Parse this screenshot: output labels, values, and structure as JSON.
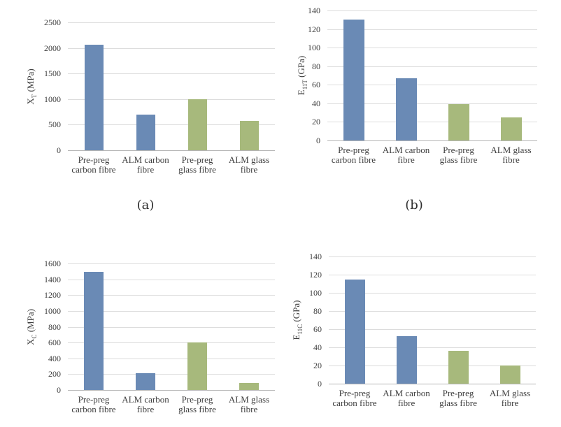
{
  "figure": {
    "background": "#ffffff",
    "subfigure_labels": [
      "(a)",
      "(b)"
    ]
  },
  "palette": {
    "carbon_fibre_bar_blue": "#6a8ab5",
    "glass_fibre_bar_green": "#a7b97c",
    "gridline": "#dcdcdc",
    "axis_line": "#b5b5b5",
    "text": "#3f3f3f"
  },
  "chart_data": [
    {
      "id": "a",
      "type": "bar",
      "caption": "(a)",
      "ylabel": "XT (MPa)",
      "ylabel_parts": {
        "base": "X",
        "sub": "T",
        "unit": " (MPa)"
      },
      "categories": [
        "Pre-preg carbon fibre",
        "ALM carbon fibre",
        "Pre-preg glass fibre",
        "ALM glass fibre"
      ],
      "category_lines": [
        [
          "Pre-preg",
          "carbon fibre"
        ],
        [
          "ALM carbon",
          "fibre"
        ],
        [
          "Pre-preg",
          "glass fibre"
        ],
        [
          "ALM glass",
          "fibre"
        ]
      ],
      "values": [
        2070,
        700,
        1000,
        580
      ],
      "bar_colors": [
        "#6a8ab5",
        "#6a8ab5",
        "#a7b97c",
        "#a7b97c"
      ],
      "ylim": [
        0,
        2500
      ],
      "ytick_step": 500,
      "yticks": [
        0,
        500,
        1000,
        1500,
        2000,
        2500
      ],
      "grid": true,
      "legend": "none"
    },
    {
      "id": "b",
      "type": "bar",
      "caption": "(b)",
      "ylabel": "E11T (GPa)",
      "ylabel_parts": {
        "base": "E",
        "sub": "11T",
        "unit": " (GPa)"
      },
      "categories": [
        "Pre-preg carbon fibre",
        "ALM carbon fibre",
        "Pre-preg glass fibre",
        "ALM glass fibre"
      ],
      "category_lines": [
        [
          "Pre-preg",
          "carbon fibre"
        ],
        [
          "ALM carbon",
          "fibre"
        ],
        [
          "Pre-preg",
          "glass fibre"
        ],
        [
          "ALM glass",
          "fibre"
        ]
      ],
      "values": [
        130,
        67,
        39,
        25
      ],
      "bar_colors": [
        "#6a8ab5",
        "#6a8ab5",
        "#a7b97c",
        "#a7b97c"
      ],
      "ylim": [
        0,
        140
      ],
      "ytick_step": 20,
      "yticks": [
        0,
        20,
        40,
        60,
        80,
        100,
        120,
        140
      ],
      "grid": true,
      "legend": "none"
    },
    {
      "id": "c",
      "type": "bar",
      "caption": "",
      "ylabel": "XC (MPa)",
      "ylabel_parts": {
        "base": "X",
        "sub": "C",
        "unit": " (MPa)"
      },
      "categories": [
        "Pre-preg carbon fibre",
        "ALM carbon fibre",
        "Pre-preg glass fibre",
        "ALM glass fibre"
      ],
      "category_lines": [
        [
          "Pre-preg",
          "carbon fibre"
        ],
        [
          "ALM carbon",
          "fibre"
        ],
        [
          "Pre-preg",
          "glass fibre"
        ],
        [
          "ALM glass",
          "fibre"
        ]
      ],
      "values": [
        1490,
        215,
        600,
        85
      ],
      "bar_colors": [
        "#6a8ab5",
        "#6a8ab5",
        "#a7b97c",
        "#a7b97c"
      ],
      "ylim": [
        0,
        1600
      ],
      "ytick_step": 200,
      "yticks": [
        0,
        200,
        400,
        600,
        800,
        1000,
        1200,
        1400,
        1600
      ],
      "grid": true,
      "legend": "none"
    },
    {
      "id": "d",
      "type": "bar",
      "caption": "",
      "ylabel": "E11C (GPa)",
      "ylabel_parts": {
        "base": "E",
        "sub": "11C",
        "unit": " (GPa)"
      },
      "categories": [
        "Pre-preg carbon fibre",
        "ALM carbon fibre",
        "Pre-preg glass fibre",
        "ALM glass fibre"
      ],
      "category_lines": [
        [
          "Pre-preg",
          "carbon fibre"
        ],
        [
          "ALM carbon",
          "fibre"
        ],
        [
          "Pre-preg",
          "glass fibre"
        ],
        [
          "ALM glass",
          "fibre"
        ]
      ],
      "values": [
        115,
        52,
        36,
        20
      ],
      "bar_colors": [
        "#6a8ab5",
        "#6a8ab5",
        "#a7b97c",
        "#a7b97c"
      ],
      "ylim": [
        0,
        140
      ],
      "ytick_step": 20,
      "yticks": [
        0,
        20,
        40,
        60,
        80,
        100,
        120,
        140
      ],
      "grid": true,
      "legend": "none"
    }
  ]
}
